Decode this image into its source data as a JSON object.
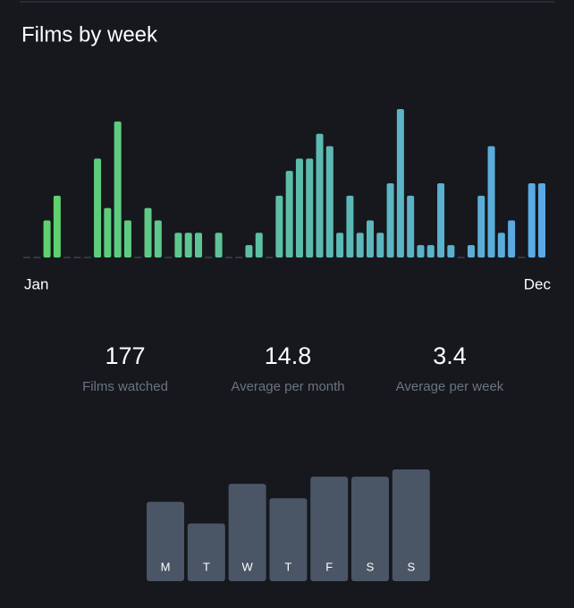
{
  "chart_data": [
    {
      "type": "bar",
      "title": "Films by week",
      "values": [
        0,
        0,
        3,
        5,
        0,
        0,
        0,
        8,
        4,
        11,
        3,
        0,
        4,
        3,
        0,
        2,
        2,
        2,
        0,
        2,
        0,
        0,
        1,
        2,
        0,
        5,
        7,
        8,
        8,
        10,
        9,
        2,
        5,
        2,
        3,
        2,
        6,
        12,
        5,
        1,
        1,
        6,
        1,
        0,
        1,
        5,
        9,
        2,
        3,
        0,
        6,
        6
      ],
      "x_labels": [
        "Jan",
        "Dec"
      ],
      "gradient": [
        "#5fd36a",
        "#5aa9e6"
      ],
      "ylim": [
        0,
        12
      ]
    },
    {
      "type": "bar",
      "categories": [
        "M",
        "T",
        "W",
        "T",
        "F",
        "S",
        "S"
      ],
      "values": [
        22,
        16,
        27,
        23,
        29,
        29,
        31
      ],
      "color": "#4a5666",
      "ylim": [
        0,
        31
      ]
    }
  ],
  "stats": [
    {
      "value": 177,
      "label": "Films watched"
    },
    {
      "value": 14.8,
      "label": "Average per month"
    },
    {
      "value": 3.4,
      "label": "Average per week"
    }
  ]
}
